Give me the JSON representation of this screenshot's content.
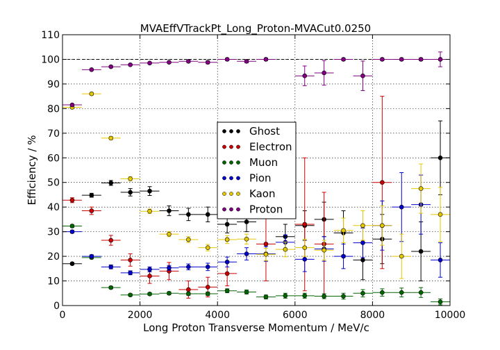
{
  "chart_data": {
    "type": "scatter",
    "title": "MVAEffVTrackPt_Long_Proton-MVACut0.0250",
    "xlabel": "Long Proton Transverse Momentum / MeV/c",
    "ylabel": "Efficiency / %",
    "xlim": [
      0,
      10000
    ],
    "ylim": [
      0,
      110
    ],
    "xticks": [
      0,
      2000,
      4000,
      6000,
      8000,
      10000
    ],
    "yticks": [
      0,
      10,
      20,
      30,
      40,
      50,
      60,
      70,
      80,
      90,
      100,
      110
    ],
    "grid": true,
    "reference_line": 100,
    "legend_placement": "center",
    "bin_half_width": 250,
    "series": [
      {
        "name": "Ghost",
        "color": "#000000",
        "x": [
          250,
          750,
          1250,
          1750,
          2250,
          2750,
          3250,
          3750,
          4250,
          4750,
          5750,
          6250,
          6750,
          7250,
          7750,
          8250,
          9250,
          9750
        ],
        "y": [
          17,
          44.8,
          49.8,
          46,
          46.5,
          38.5,
          37,
          37,
          33,
          34,
          28,
          32.5,
          35,
          29.5,
          18.5,
          27,
          22,
          60
        ],
        "err": [
          0.5,
          0.8,
          1,
          1.5,
          1.8,
          2,
          2.5,
          3,
          3.5,
          4,
          5,
          6,
          7,
          9,
          8,
          10,
          12,
          15
        ]
      },
      {
        "name": "Electron",
        "color": "#cc0000",
        "x": [
          250,
          750,
          1250,
          1750,
          2250,
          2750,
          3250,
          3750,
          4250,
          5250,
          6250,
          6750,
          8250
        ],
        "y": [
          42.8,
          38.5,
          26.5,
          18.5,
          12,
          14,
          6.5,
          7.5,
          13,
          25,
          33,
          25,
          50
        ],
        "err": [
          1,
          1.5,
          2,
          2.5,
          3,
          3.5,
          3.5,
          4,
          5,
          15,
          27,
          21,
          35
        ]
      },
      {
        "name": "Muon",
        "color": "#006600",
        "x": [
          250,
          750,
          1250,
          1750,
          2250,
          2750,
          3250,
          3750,
          4250,
          4750,
          5250,
          5750,
          6250,
          6750,
          7250,
          7750,
          8250,
          8750,
          9250,
          9750
        ],
        "y": [
          32.3,
          19.5,
          7.3,
          4.3,
          4.7,
          5,
          4.8,
          4.8,
          6,
          5.5,
          3.5,
          4,
          4,
          3.8,
          3.8,
          5,
          5.3,
          5.3,
          5.3,
          1.5
        ],
        "err": [
          0.5,
          0.5,
          0.5,
          0.5,
          0.5,
          0.6,
          0.6,
          0.7,
          0.8,
          0.8,
          0.8,
          1,
          1,
          1,
          1.2,
          1.5,
          1.5,
          1.8,
          2,
          1.2
        ]
      },
      {
        "name": "Pion",
        "color": "#0000cc",
        "x": [
          250,
          750,
          1250,
          1750,
          2250,
          2750,
          3250,
          3750,
          4250,
          4750,
          5250,
          5750,
          6250,
          6750,
          7250,
          7750,
          8250,
          8750,
          9250,
          9750
        ],
        "y": [
          30,
          20,
          15.7,
          13.3,
          14.7,
          15.3,
          15.7,
          15.7,
          17.7,
          21,
          21,
          25.7,
          18.8,
          23,
          20,
          25.5,
          32.5,
          40,
          41,
          18.5
        ],
        "err": [
          0.5,
          0.6,
          0.8,
          0.8,
          1,
          1,
          1.2,
          1.5,
          2,
          2.5,
          3,
          3,
          5,
          5,
          5,
          6,
          10,
          14,
          12,
          7
        ]
      },
      {
        "name": "Kaon",
        "color": "#e6c800",
        "x": [
          250,
          750,
          1250,
          1750,
          2250,
          2750,
          3250,
          3750,
          4250,
          4750,
          5250,
          5750,
          6250,
          6750,
          7250,
          7750,
          8250,
          8750,
          9250,
          9750
        ],
        "y": [
          80.5,
          86,
          68,
          51.5,
          38.3,
          29,
          26.8,
          23.5,
          26.8,
          27,
          20.8,
          22.8,
          23.5,
          22.5,
          30.5,
          32.5,
          32.5,
          20,
          47.5,
          37
        ],
        "err": [
          0.5,
          0.5,
          0.6,
          0.8,
          0.9,
          1,
          1.2,
          1.3,
          1.6,
          2,
          2.5,
          3,
          3.5,
          4,
          5,
          6,
          8,
          9,
          10,
          11
        ]
      },
      {
        "name": "Proton",
        "color": "#800080",
        "x": [
          250,
          750,
          1250,
          1750,
          2250,
          2750,
          3250,
          3750,
          4250,
          4750,
          5250,
          6250,
          6750,
          7250,
          7750,
          8250,
          8750,
          9250,
          9750
        ],
        "y": [
          81.5,
          95.8,
          97,
          97.8,
          98.5,
          98.8,
          99.2,
          98.8,
          100,
          99.2,
          100,
          93.3,
          94.5,
          100,
          93.3,
          100,
          100,
          100,
          100
        ],
        "err": [
          0.3,
          0.3,
          0.3,
          0.3,
          0.4,
          0.4,
          0.5,
          0.6,
          0.5,
          0.6,
          0.5,
          4,
          5,
          0.5,
          6,
          0.5,
          0.5,
          0.5,
          3
        ]
      }
    ]
  }
}
